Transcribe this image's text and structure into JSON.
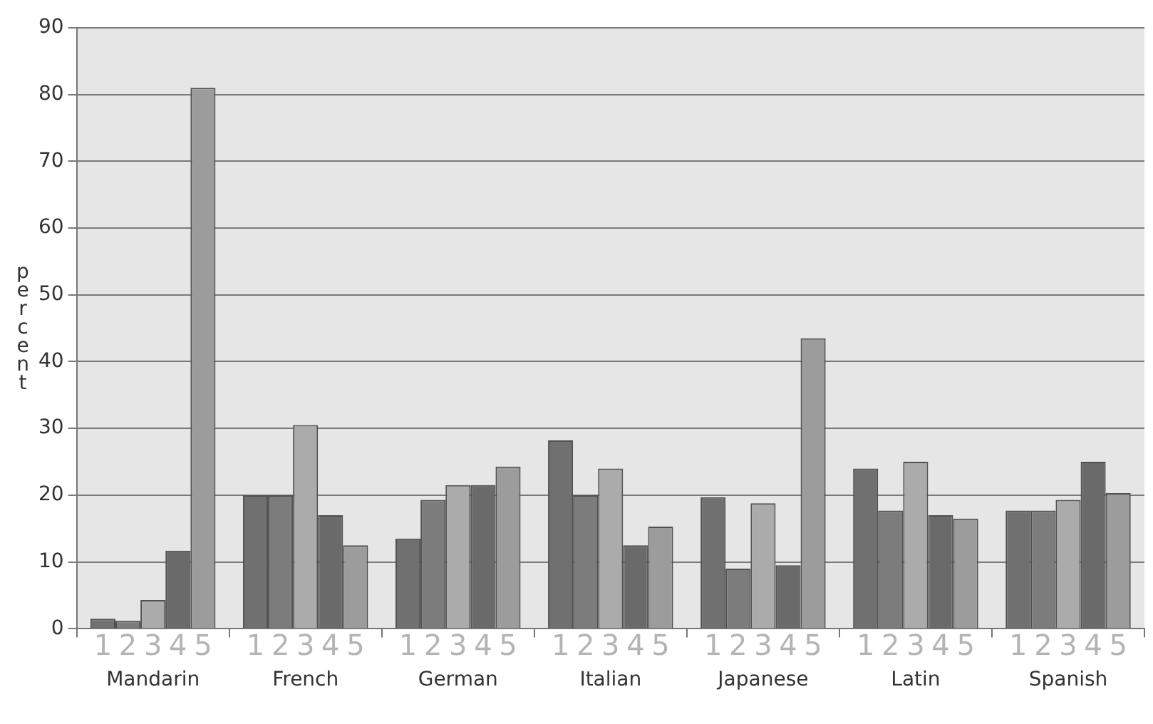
{
  "chart_data": {
    "type": "bar",
    "ylabel": "percent",
    "categories": [
      "Mandarin",
      "French",
      "German",
      "Italian",
      "Japanese",
      "Latin",
      "Spanish"
    ],
    "series": [
      {
        "name": "1",
        "color": "#707070",
        "values": [
          1.5,
          20,
          13.5,
          28.2,
          19.7,
          24,
          17.7
        ]
      },
      {
        "name": "2",
        "color": "#7c7c7c",
        "values": [
          1.2,
          20,
          19.3,
          20,
          9,
          17.7,
          17.7
        ]
      },
      {
        "name": "3",
        "color": "#ababab",
        "values": [
          4.3,
          30.5,
          21.5,
          24,
          18.8,
          25,
          19.3
        ]
      },
      {
        "name": "4",
        "color": "#6a6a6a",
        "values": [
          11.7,
          17,
          21.5,
          12.5,
          9.5,
          17,
          25
        ]
      },
      {
        "name": "5",
        "color": "#9c9c9c",
        "values": [
          81,
          12.5,
          24.3,
          15.3,
          43.5,
          16.5,
          20.3
        ]
      }
    ],
    "ylim": [
      0,
      90
    ],
    "yticks": [
      0,
      10,
      20,
      30,
      40,
      50,
      60,
      70,
      80,
      90
    ],
    "grid": "y"
  }
}
